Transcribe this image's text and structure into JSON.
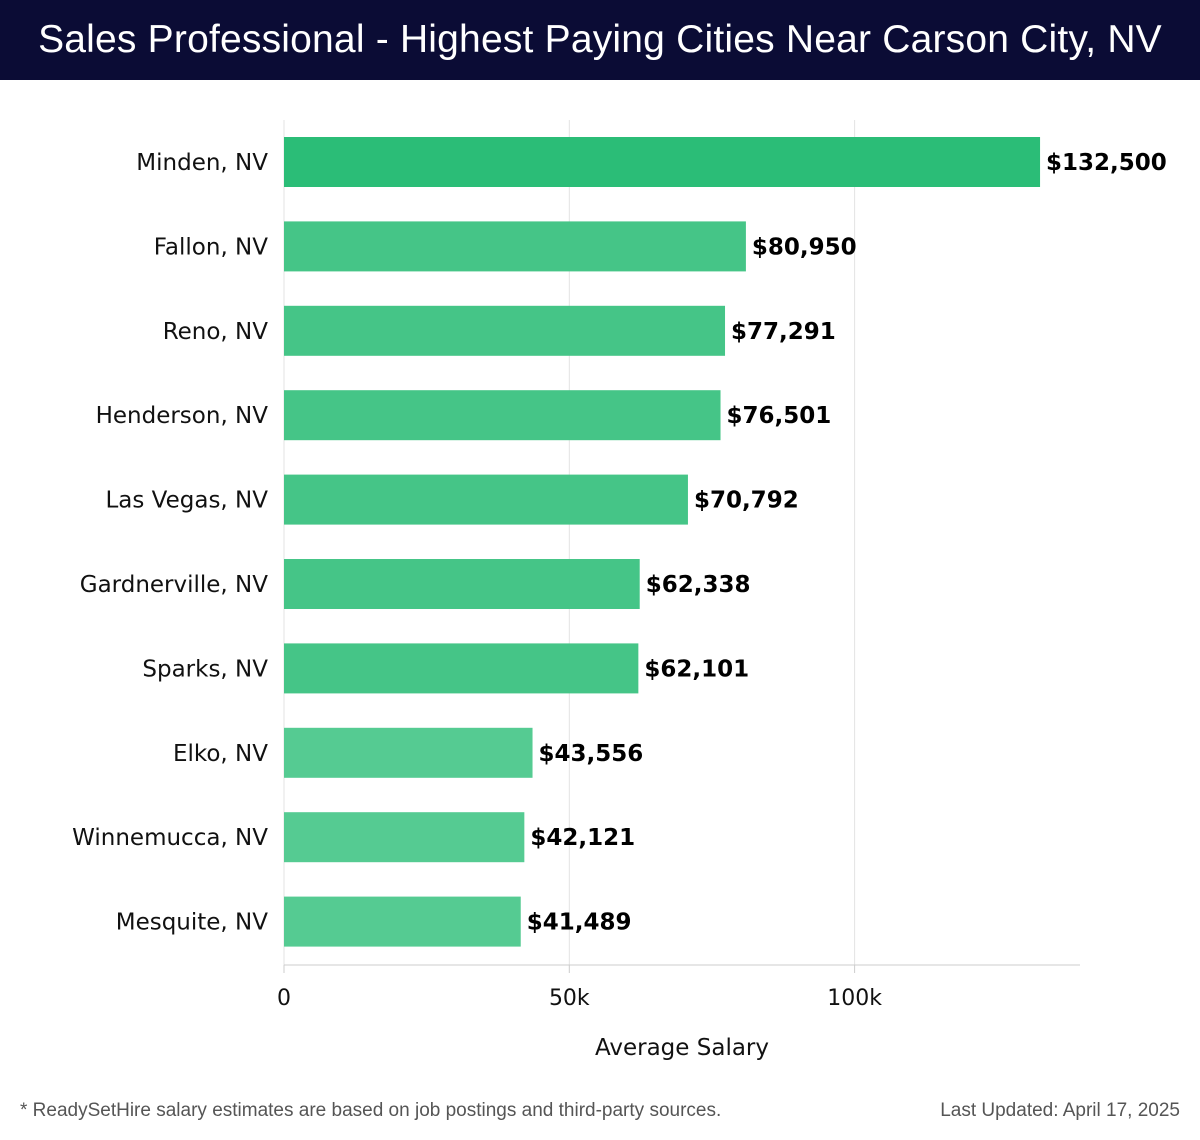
{
  "header": {
    "title": "Sales Professional - Highest Paying Cities Near Carson City, NV"
  },
  "chart_data": {
    "type": "bar",
    "orientation": "horizontal",
    "title": "Sales Professional - Highest Paying Cities Near Carson City, NV",
    "xlabel": "Average Salary",
    "ylabel": "",
    "categories": [
      "Minden, NV",
      "Fallon, NV",
      "Reno, NV",
      "Henderson, NV",
      "Las Vegas, NV",
      "Gardnerville, NV",
      "Sparks, NV",
      "Elko, NV",
      "Winnemucca, NV",
      "Mesquite, NV"
    ],
    "values": [
      132500,
      80950,
      77291,
      76501,
      70792,
      62338,
      62101,
      43556,
      42121,
      41489
    ],
    "value_labels": [
      "$132,500",
      "$80,950",
      "$77,291",
      "$76,501",
      "$70,792",
      "$62,338",
      "$62,101",
      "$43,556",
      "$42,121",
      "$41,489"
    ],
    "xticks": [
      0,
      50000,
      100000
    ],
    "xtick_labels": [
      "0",
      "50k",
      "100k"
    ],
    "xlim": [
      0,
      139500
    ],
    "grid": true,
    "legend": "none",
    "colors": {
      "top_bar": "#2bbd77",
      "bar": "#45c587",
      "bar_light": "#55cb92",
      "grid": "#e3e3e3",
      "axis": "#cccccc",
      "label": "#111111"
    }
  },
  "footer": {
    "note": "* ReadySetHire salary estimates are based on job postings and third-party sources.",
    "updated": "Last Updated: April 17, 2025"
  }
}
